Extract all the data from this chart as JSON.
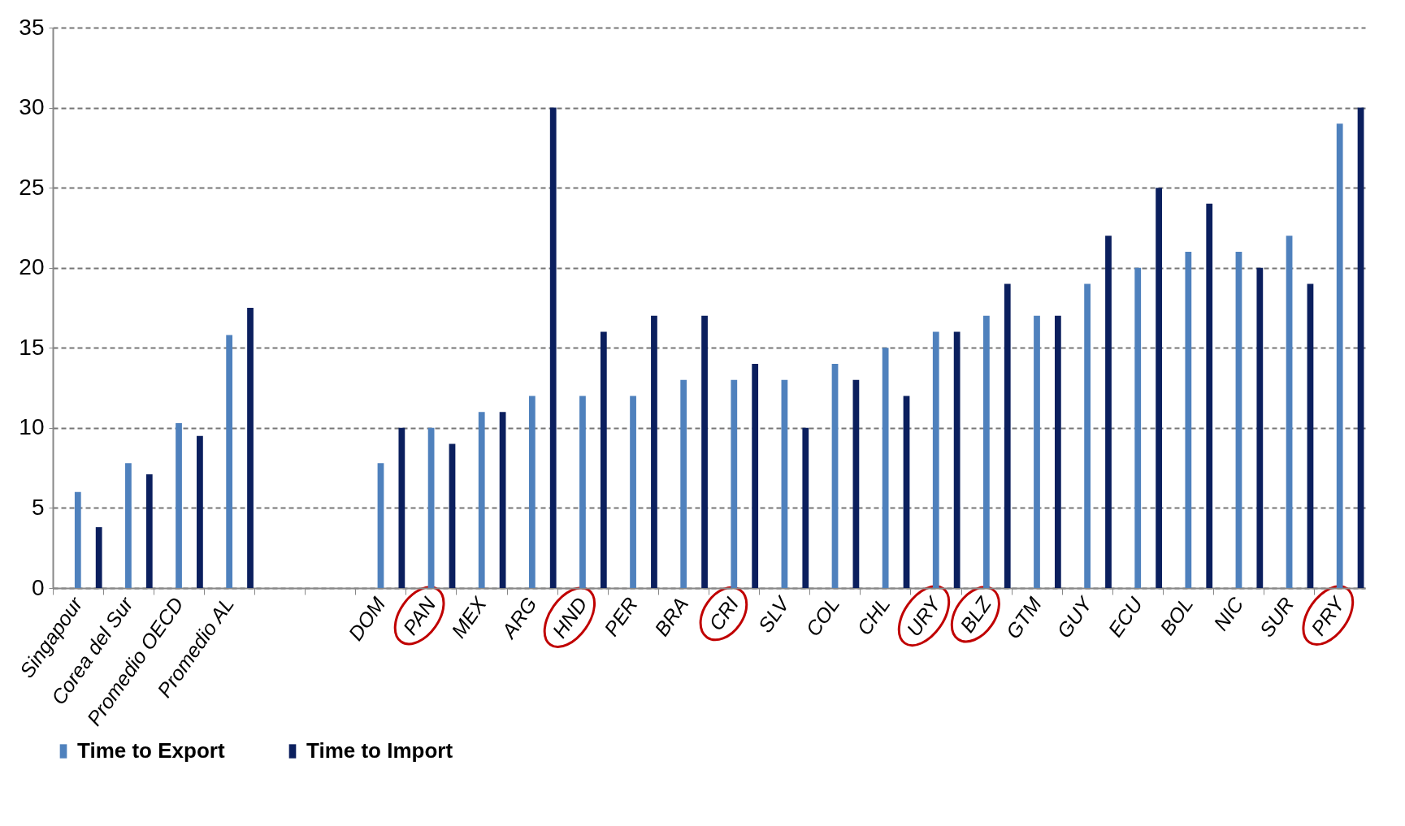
{
  "chart_data": {
    "type": "bar",
    "categories": [
      "Singapour",
      "Corea del Sur",
      "Promedio OECD",
      "Promedio AL",
      null,
      null,
      "DOM",
      "PAN",
      "MEX",
      "ARG",
      "HND",
      "PER",
      "BRA",
      "CRI",
      "SLV",
      "COL",
      "CHL",
      "URY",
      "BLZ",
      "GTM",
      "GUY",
      "ECU",
      "BOL",
      "NIC",
      "SUR",
      "PRY"
    ],
    "series": [
      {
        "name": "Time to Export",
        "color": "#4f81bd",
        "values": [
          6,
          7.8,
          10.3,
          15.8,
          null,
          null,
          7.8,
          10,
          11,
          12,
          12,
          12,
          13,
          13,
          13,
          14,
          15,
          16,
          17,
          17,
          19,
          20,
          21,
          21,
          22,
          29
        ]
      },
      {
        "name": "Time to Import",
        "color": "#0b1f5e",
        "values": [
          3.8,
          7.1,
          9.5,
          17.5,
          null,
          null,
          10,
          9,
          11,
          30,
          16,
          17,
          17,
          14,
          10,
          13,
          12,
          16,
          19,
          17,
          22,
          25,
          24,
          20,
          19,
          30
        ]
      }
    ],
    "ylim": [
      0,
      35
    ],
    "yticks": [
      0,
      5,
      10,
      15,
      20,
      25,
      30,
      35
    ],
    "grid": "y",
    "legend": "bottom"
  }
}
